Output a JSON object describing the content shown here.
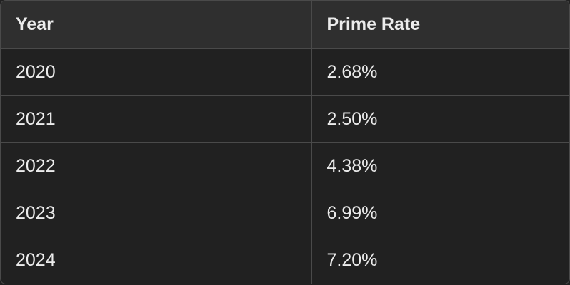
{
  "table": {
    "headers": [
      "Year",
      "Prime Rate"
    ],
    "rows": [
      [
        "2020",
        "2.68%"
      ],
      [
        "2021",
        "2.50%"
      ],
      [
        "2022",
        "4.38%"
      ],
      [
        "2023",
        "6.99%"
      ],
      [
        "2024",
        "7.20%"
      ]
    ]
  },
  "colors": {
    "background": "#212121",
    "header_background": "#2f2f2f",
    "border": "#4a4a4a",
    "text": "#ececec"
  }
}
